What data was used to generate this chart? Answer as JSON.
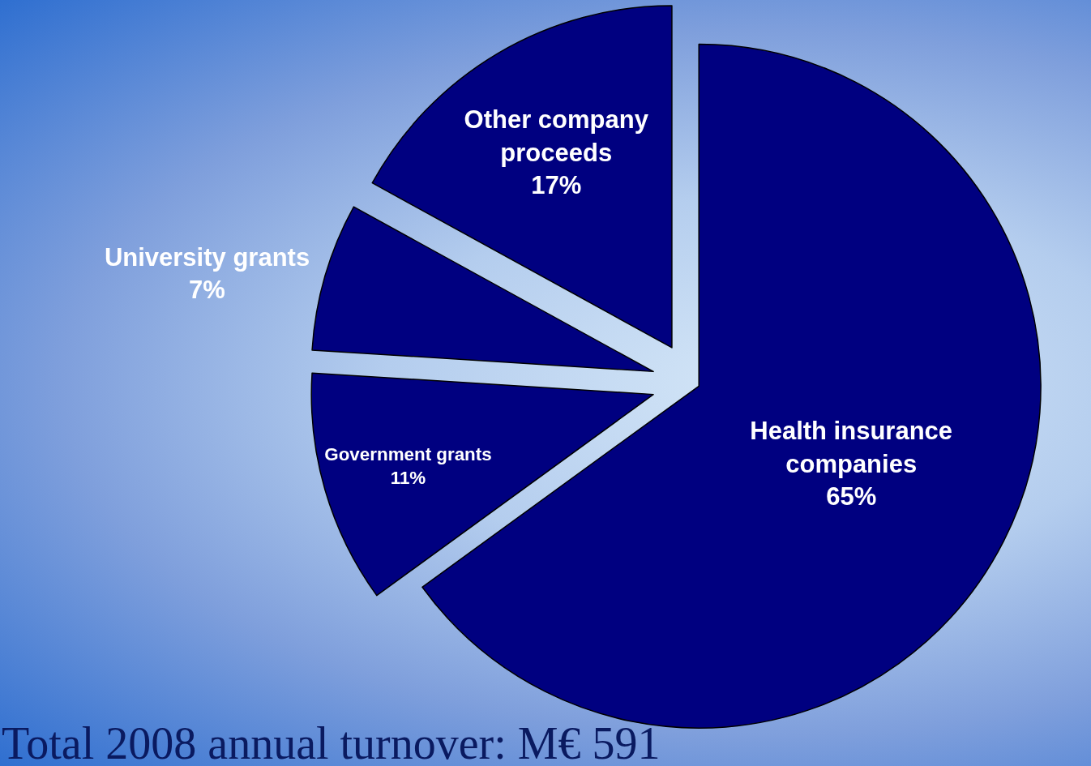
{
  "chart_data": {
    "type": "pie",
    "categories": [
      "Health insurance companies",
      "Government grants",
      "University grants",
      "Other company proceeds"
    ],
    "values": [
      65,
      11,
      7,
      17
    ],
    "value_labels": [
      "65%",
      "11%",
      "7%",
      "17%"
    ],
    "colors": [
      "#000080",
      "#000080",
      "#000080",
      "#000080"
    ],
    "annotations": [
      "Total 2008 annual turnover: M€ 591"
    ],
    "legend": false
  }
}
